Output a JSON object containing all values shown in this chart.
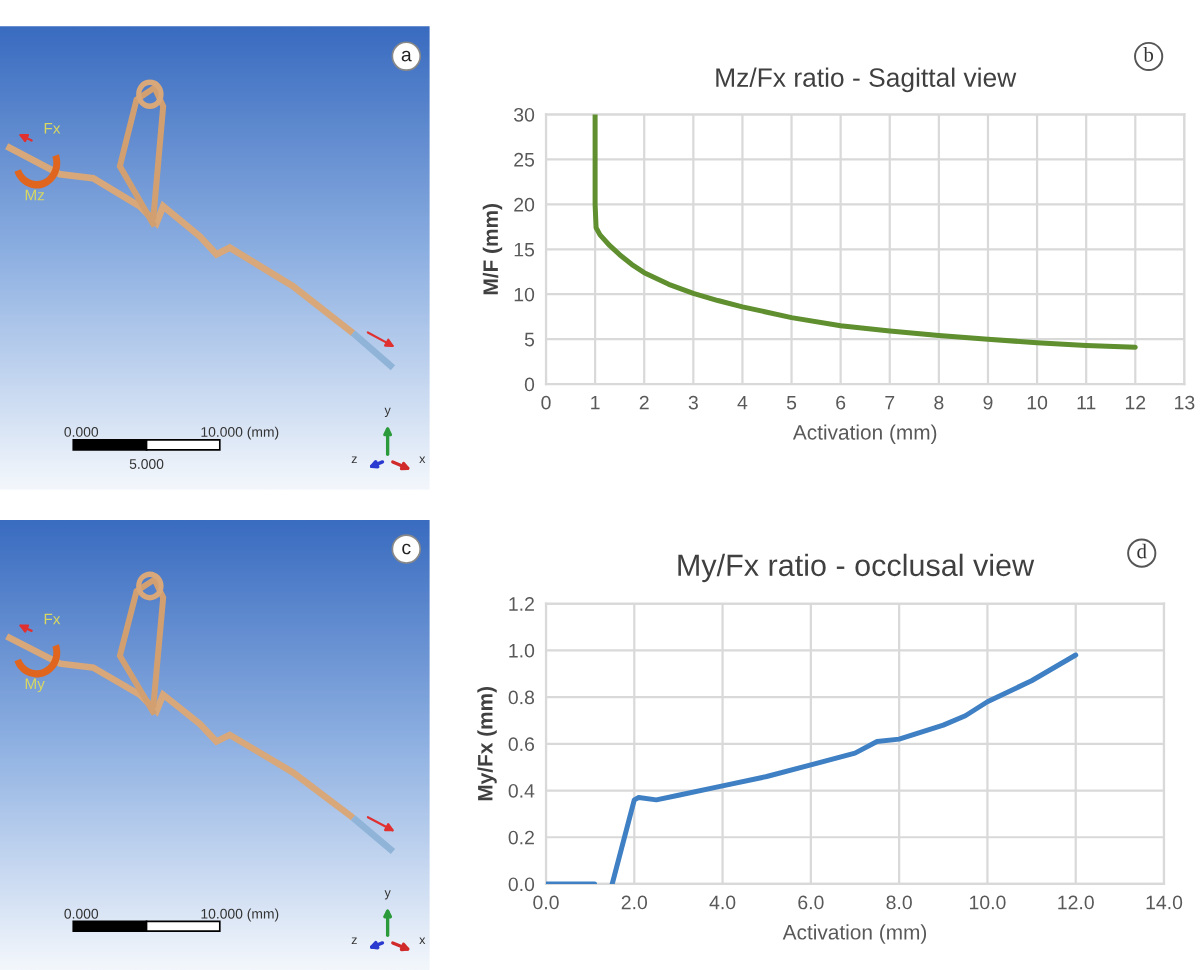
{
  "chart_data": [
    {
      "type": "other",
      "annotations": [
        "a",
        "Fx",
        "Mz",
        "0.000",
        "10.000 (mm)",
        "x",
        "y",
        "z",
        "5.000"
      ]
    },
    {
      "type": "line",
      "title": "Mz/Fx ratio - Sagittal view",
      "xlabel": "Activation (mm)",
      "ylabel": "M/F (mm)",
      "annotations": [
        "b"
      ],
      "x": [
        1,
        1,
        1.02,
        1.1,
        1.3,
        1.5,
        1.75,
        2,
        2.5,
        3,
        3.5,
        4,
        5,
        6,
        7,
        8,
        9,
        10,
        11,
        12
      ],
      "series": [
        {
          "color": "#5f8f2f",
          "values": [
            30,
            20,
            17.4,
            16.6,
            15.4,
            14.4,
            13.3,
            12.4,
            11.1,
            10.1,
            9.3,
            8.6,
            7.4,
            6.5,
            5.9,
            5.4,
            5.0,
            4.6,
            4.3,
            4.1
          ]
        }
      ],
      "xlim": [
        0,
        13
      ],
      "xticks": [
        0,
        1,
        2,
        3,
        4,
        5,
        6,
        7,
        8,
        9,
        10,
        11,
        12,
        13
      ],
      "ylim": [
        0,
        30
      ],
      "yticks": [
        0,
        5,
        10,
        15,
        20,
        25,
        30
      ],
      "grid": true
    },
    {
      "type": "other",
      "annotations": [
        "c",
        "Fx",
        "My",
        "0.000",
        "10.000 (mm)",
        "x",
        "y",
        "z"
      ]
    },
    {
      "type": "line",
      "title": "My/Fx ratio - occlusal view",
      "xlabel": "Activation (mm)",
      "ylabel": "My/Fx (mm)",
      "annotations": [
        "d"
      ],
      "x": [
        0,
        1.1,
        1.3,
        1.5,
        2.0,
        2.1,
        2.5,
        3,
        4,
        5,
        6,
        7,
        7.5,
        8,
        9,
        9.5,
        10,
        11,
        12
      ],
      "series": [
        {
          "color": "#3f80c4",
          "values": [
            0,
            0,
            null,
            0,
            0.36,
            0.37,
            0.36,
            0.38,
            0.42,
            0.46,
            0.51,
            0.56,
            0.61,
            0.62,
            0.68,
            0.72,
            0.78,
            0.87,
            0.98
          ]
        }
      ],
      "xlim": [
        0,
        14
      ],
      "xticks": [
        {
          "value": 0,
          "label": "0.0"
        },
        {
          "value": 2,
          "label": "2.0"
        },
        {
          "value": 4,
          "label": "4.0"
        },
        {
          "value": 6,
          "label": "6.0"
        },
        {
          "value": 8,
          "label": "8.0"
        },
        {
          "value": 10,
          "label": "10.0"
        },
        {
          "value": 12,
          "label": "12.0"
        },
        {
          "value": 14,
          "label": "14.0"
        }
      ],
      "ylim": [
        0,
        1.2
      ],
      "yticks": [
        {
          "value": 0,
          "label": "0.0"
        },
        {
          "value": 0.2,
          "label": "0.2"
        },
        {
          "value": 0.4,
          "label": "0.4"
        },
        {
          "value": 0.6,
          "label": "0.6"
        },
        {
          "value": 0.8,
          "label": "0.8"
        },
        {
          "value": 1.0,
          "label": "1.0"
        },
        {
          "value": 1.2,
          "label": "1.2"
        }
      ],
      "grid": true
    }
  ]
}
